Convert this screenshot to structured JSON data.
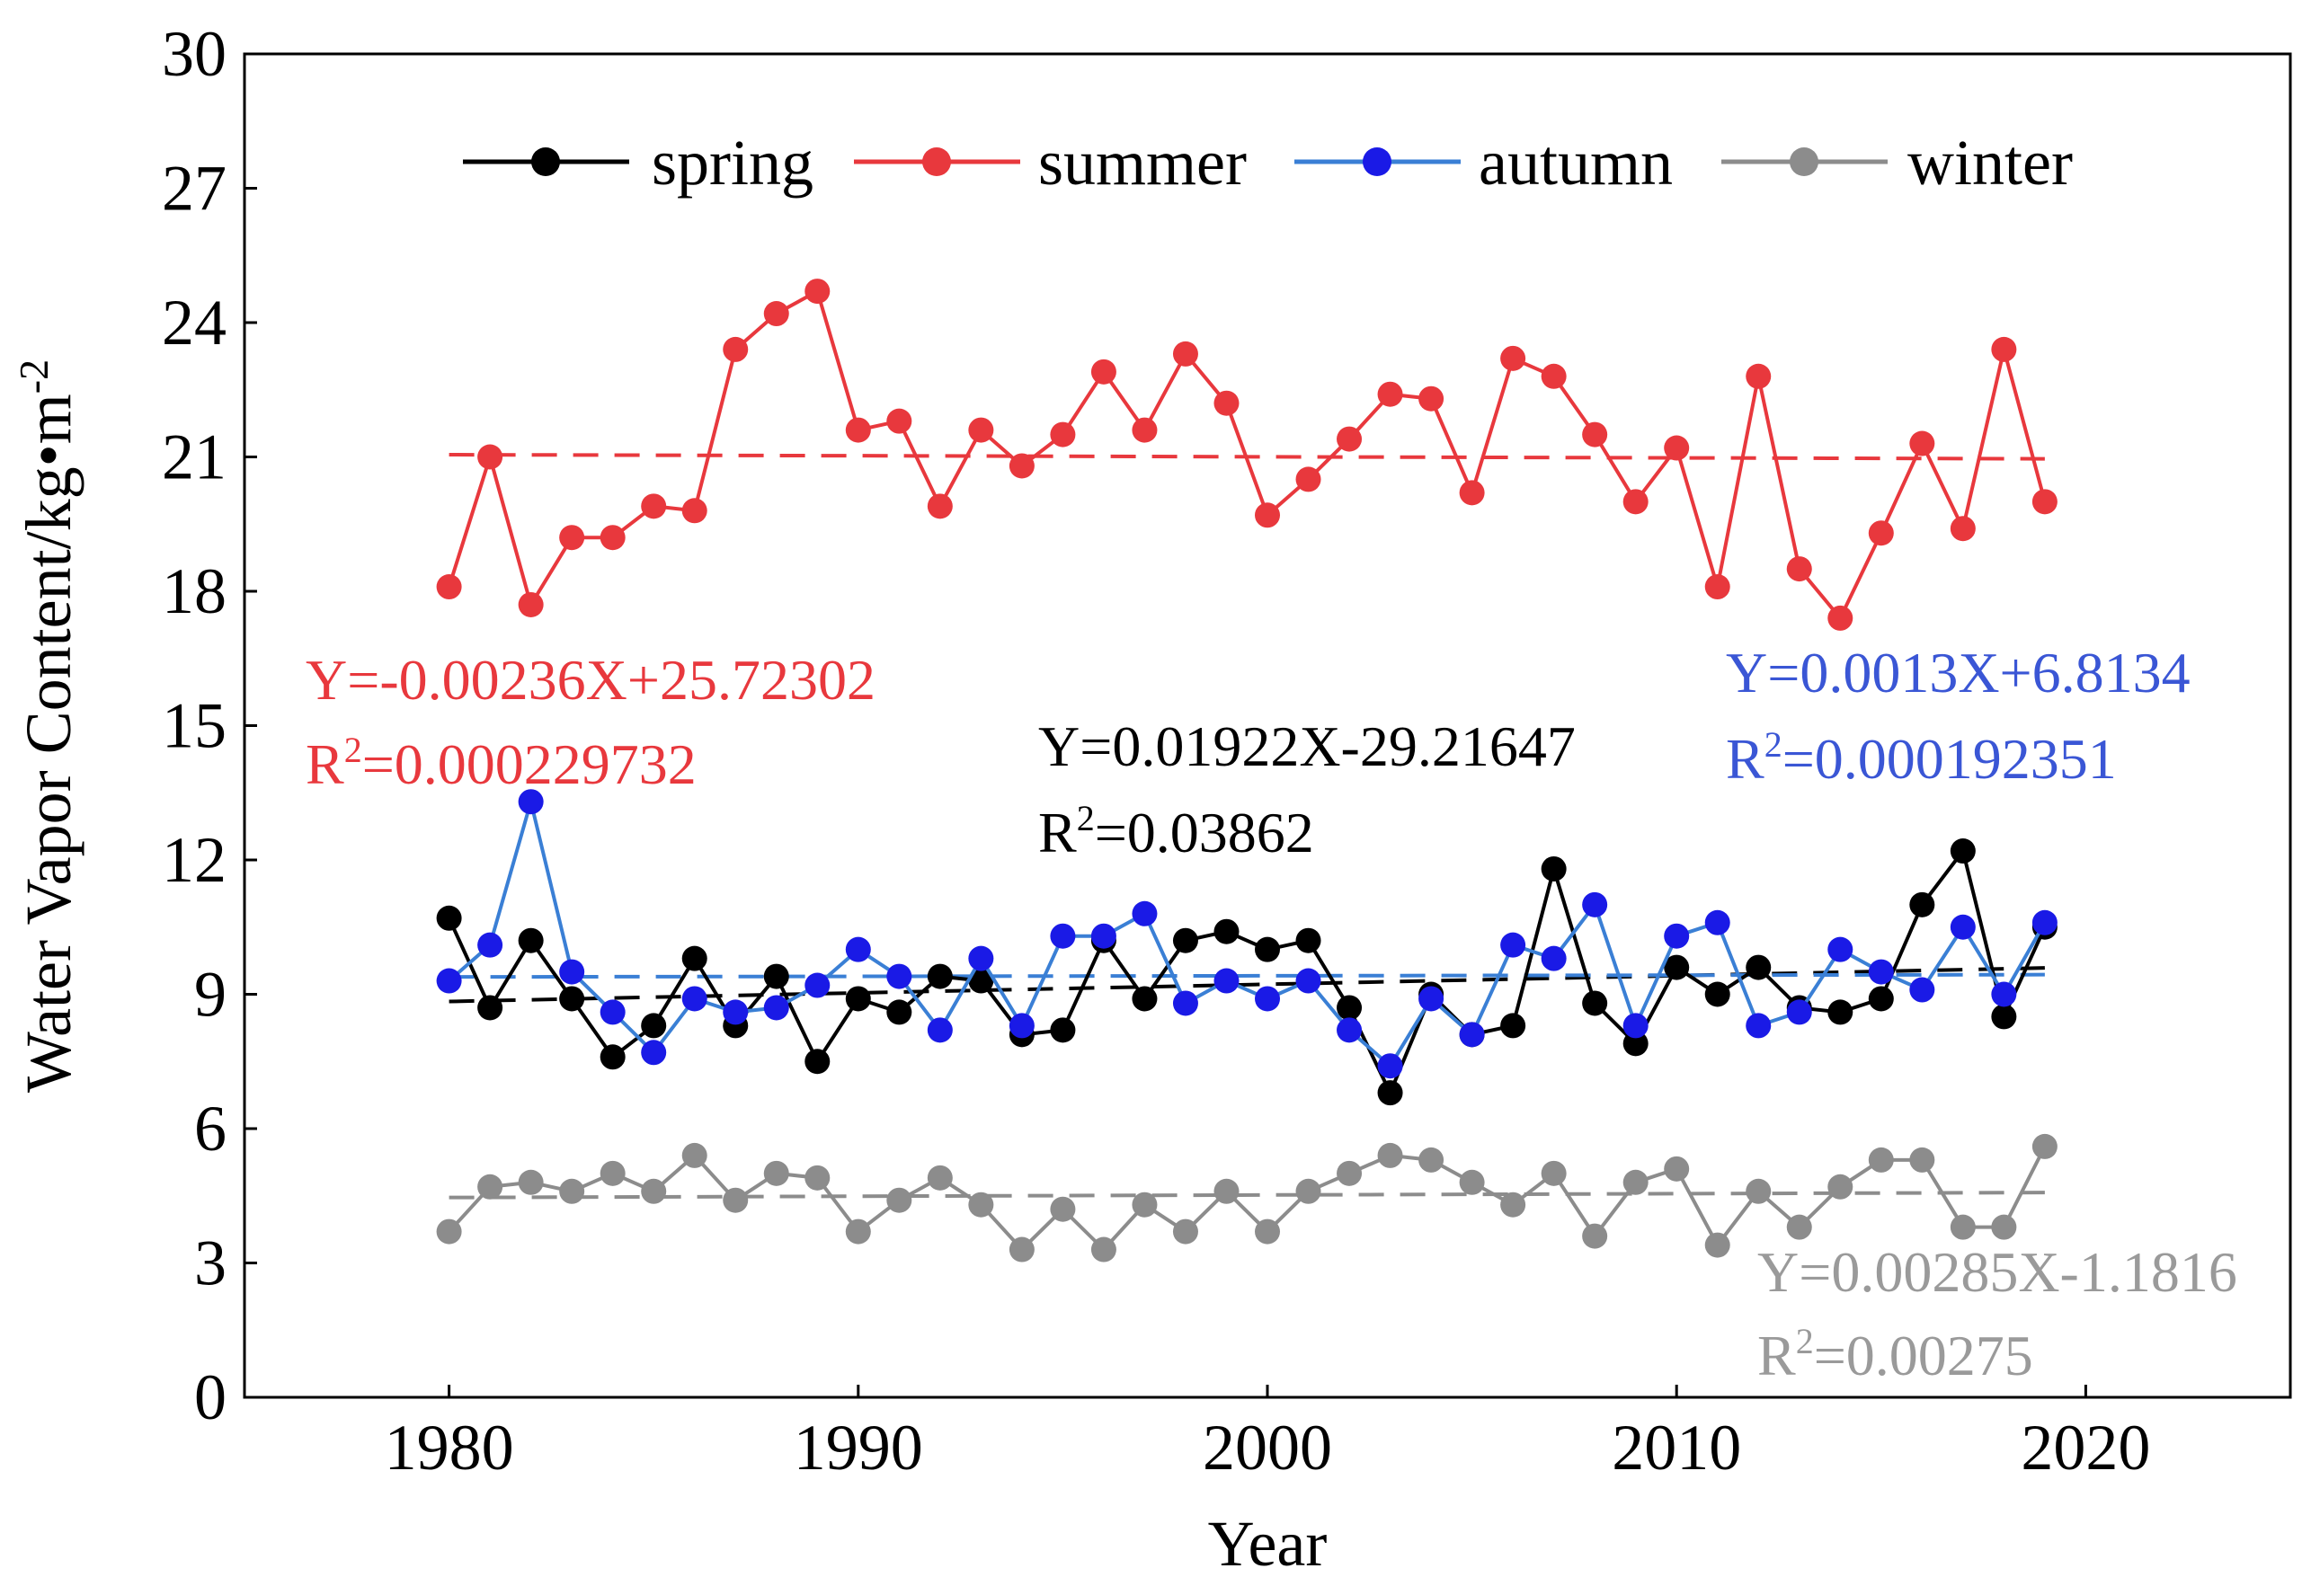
{
  "chart_data": {
    "type": "line",
    "title": "",
    "xlabel": "Year",
    "ylabel": "Water Vapor Content/kg•m",
    "ylabel_sup": "-2",
    "xlim": [
      1975,
      2025
    ],
    "ylim": [
      0,
      30
    ],
    "xticks": [
      1980,
      1990,
      2000,
      2010,
      2020
    ],
    "yticks": [
      0,
      3,
      6,
      9,
      12,
      15,
      18,
      21,
      24,
      27,
      30
    ],
    "x": [
      1980,
      1981,
      1982,
      1983,
      1984,
      1985,
      1986,
      1987,
      1988,
      1989,
      1990,
      1991,
      1992,
      1993,
      1994,
      1995,
      1996,
      1997,
      1998,
      1999,
      2000,
      2001,
      2002,
      2003,
      2004,
      2005,
      2006,
      2007,
      2008,
      2009,
      2010,
      2011,
      2012,
      2013,
      2014,
      2015,
      2016,
      2017,
      2018,
      2019
    ],
    "legend_position": "top",
    "series": [
      {
        "name": "spring",
        "color": "#000000",
        "values": [
          10.7,
          8.7,
          10.2,
          8.9,
          7.6,
          8.3,
          9.8,
          8.3,
          9.4,
          7.5,
          8.9,
          8.6,
          9.4,
          9.3,
          8.1,
          8.2,
          10.2,
          8.9,
          10.2,
          10.4,
          10.0,
          10.2,
          8.7,
          6.8,
          9.0,
          8.1,
          8.3,
          11.8,
          8.8,
          7.9,
          9.6,
          9.0,
          9.6,
          8.7,
          8.6,
          8.9,
          11.0,
          12.2,
          8.5,
          10.5
        ],
        "fit": {
          "slope": 0.01922,
          "intercept": -29.21647
        },
        "equation": "Y=0.01922X-29.21647",
        "r2_value": "=0.03862"
      },
      {
        "name": "summer",
        "color": "#e8383d",
        "values": [
          18.1,
          21.0,
          17.7,
          19.2,
          19.2,
          19.9,
          19.8,
          23.4,
          24.2,
          24.7,
          21.6,
          21.8,
          19.9,
          21.6,
          20.8,
          21.5,
          22.9,
          21.6,
          23.3,
          22.2,
          19.7,
          20.5,
          21.4,
          22.4,
          22.3,
          20.2,
          23.2,
          22.8,
          21.5,
          20.0,
          21.2,
          18.1,
          22.8,
          18.5,
          17.4,
          19.3,
          21.3,
          19.4,
          23.4,
          20.0
        ],
        "fit": {
          "slope": -0.00236,
          "intercept": 25.72302
        },
        "equation": "Y=-0.00236X+25.72302",
        "r2_value": "=0.000229732"
      },
      {
        "name": "autumn",
        "color": "#1a1ae6",
        "line_color": "#3a7fd5",
        "values": [
          9.3,
          10.1,
          13.3,
          9.5,
          8.6,
          7.7,
          8.9,
          8.6,
          8.7,
          9.2,
          10.0,
          9.4,
          8.2,
          9.8,
          8.3,
          10.3,
          10.3,
          10.8,
          8.8,
          9.3,
          8.9,
          9.3,
          8.2,
          7.4,
          8.9,
          8.1,
          10.1,
          9.8,
          11.0,
          8.3,
          10.3,
          10.6,
          8.3,
          8.6,
          10.0,
          9.5,
          9.1,
          10.5,
          9.0,
          10.6
        ],
        "fit": {
          "slope": 0.0013,
          "intercept": 6.8134
        },
        "equation": "Y=0.0013X+6.8134",
        "r2_value": "=0.000192351"
      },
      {
        "name": "winter",
        "color": "#8c8c8c",
        "values": [
          3.7,
          4.7,
          4.8,
          4.6,
          5.0,
          4.6,
          5.4,
          4.4,
          5.0,
          4.9,
          3.7,
          4.4,
          4.9,
          4.3,
          3.3,
          4.2,
          3.3,
          4.3,
          3.7,
          4.6,
          3.7,
          4.6,
          5.0,
          5.4,
          5.3,
          4.8,
          4.3,
          5.0,
          3.6,
          4.8,
          5.1,
          3.4,
          4.6,
          3.8,
          4.7,
          5.3,
          5.3,
          3.8,
          3.8,
          5.6
        ],
        "fit": {
          "slope": 0.00285,
          "intercept": -1.1816
        },
        "equation": "Y=0.00285X-1.1816",
        "r2_value": "=0.00275"
      }
    ],
    "annotation_r_label": "R",
    "annotation_r_sup": "2"
  }
}
